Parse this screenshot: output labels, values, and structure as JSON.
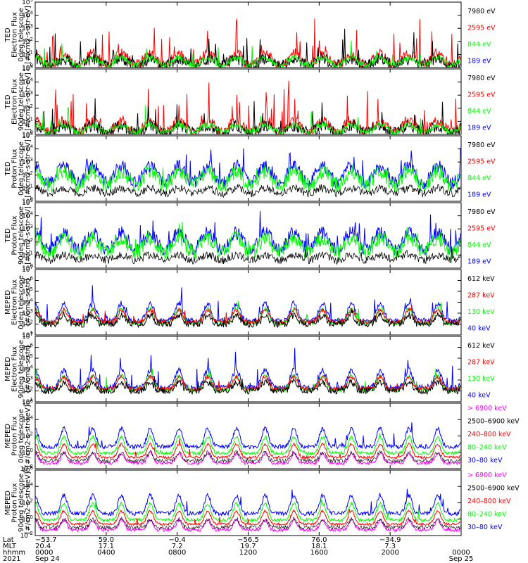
{
  "figure": {
    "footer": {
      "row_labels": [
        "Lat",
        "MLT",
        "hhmm",
        "2021"
      ],
      "columns": [
        {
          "lat": "−53.7",
          "mlt": "20.4",
          "hhmm": "0000",
          "date": "Sep 24"
        },
        {
          "lat": "59.0",
          "mlt": "17.1",
          "hhmm": "0400",
          "date": ""
        },
        {
          "lat": "−0.4",
          "mlt": "7.2",
          "hhmm": "0800",
          "date": ""
        },
        {
          "lat": "−56.5",
          "mlt": "19.7",
          "hhmm": "1200",
          "date": ""
        },
        {
          "lat": "76.0",
          "mlt": "18.1",
          "hhmm": "1600",
          "date": ""
        },
        {
          "lat": "−34.9",
          "mlt": "7.3",
          "hhmm": "2000",
          "date": ""
        },
        {
          "lat": "",
          "mlt": "",
          "hhmm": "0000",
          "date": "Sep 25"
        }
      ]
    }
  },
  "colors": {
    "black": "#000000",
    "red": "#ff0000",
    "green": "#00ff00",
    "blue": "#0000ff",
    "magenta": "#ff00ff"
  },
  "chart_data": [
    {
      "type": "line",
      "ylabel": [
        "TED",
        "Electron Flux",
        "0deg telescope",
        "[#/cm2-s-str-eV]"
      ],
      "ylog": true,
      "ylim_exp": [
        0,
        5
      ],
      "ytick_exps": [
        0,
        1,
        2,
        3,
        4,
        5
      ],
      "x_hours": [
        0,
        24
      ],
      "xtick_hours": [
        0,
        4,
        8,
        12,
        16,
        20,
        24
      ],
      "style": "ted-electron",
      "seed": 11,
      "series": [
        {
          "name": "7980 eV",
          "color": "#000000"
        },
        {
          "name": "2595 eV",
          "color": "#ff0000"
        },
        {
          "name": "844 eV",
          "color": "#00ff00"
        },
        {
          "name": "189 eV",
          "color": "#0000ff"
        }
      ]
    },
    {
      "type": "line",
      "ylabel": [
        "TED",
        "Electron Flux",
        "90deg telescope",
        "[#/cm2-s-str-eV]"
      ],
      "ylog": true,
      "ylim_exp": [
        0,
        5
      ],
      "ytick_exps": [
        0,
        1,
        2,
        3,
        4,
        5
      ],
      "x_hours": [
        0,
        24
      ],
      "xtick_hours": [
        0,
        4,
        8,
        12,
        16,
        20,
        24
      ],
      "style": "ted-electron",
      "seed": 23,
      "series": [
        {
          "name": "7980 eV",
          "color": "#000000"
        },
        {
          "name": "2595 eV",
          "color": "#ff0000"
        },
        {
          "name": "844 eV",
          "color": "#00ff00"
        },
        {
          "name": "189 eV",
          "color": "#0000ff"
        }
      ]
    },
    {
      "type": "line",
      "ylabel": [
        "TED",
        "Proton Flux",
        "0deg telescope",
        "[#/cm2-s-str-eV]"
      ],
      "ylog": true,
      "ylim_exp": [
        0,
        5
      ],
      "ytick_exps": [
        0,
        1,
        2,
        3,
        4,
        5
      ],
      "x_hours": [
        0,
        24
      ],
      "xtick_hours": [
        0,
        4,
        8,
        12,
        16,
        20,
        24
      ],
      "style": "ted-proton",
      "seed": 37,
      "series": [
        {
          "name": "7980 eV",
          "color": "#000000"
        },
        {
          "name": "2595 eV",
          "color": "#ff0000"
        },
        {
          "name": "844 eV",
          "color": "#00ff00"
        },
        {
          "name": "189 eV",
          "color": "#0000ff"
        }
      ]
    },
    {
      "type": "line",
      "ylabel": [
        "TED",
        "Proton Flux",
        "90deg telescope",
        "[#/cm2-s-str-eV]"
      ],
      "ylog": true,
      "ylim_exp": [
        0,
        5
      ],
      "ytick_exps": [
        0,
        1,
        2,
        3,
        4,
        5
      ],
      "x_hours": [
        0,
        24
      ],
      "xtick_hours": [
        0,
        4,
        8,
        12,
        16,
        20,
        24
      ],
      "style": "ted-proton",
      "seed": 41,
      "series": [
        {
          "name": "7980 eV",
          "color": "#000000"
        },
        {
          "name": "2595 eV",
          "color": "#ff0000"
        },
        {
          "name": "844 eV",
          "color": "#00ff00"
        },
        {
          "name": "189 eV",
          "color": "#0000ff"
        }
      ]
    },
    {
      "type": "line",
      "ylabel": [
        "MEPED",
        "Electron Flux",
        "0deg telescope",
        "[#/cm2-s-str]"
      ],
      "ylog": true,
      "ylim_exp": [
        1,
        7
      ],
      "ytick_exps": [
        1,
        2,
        3,
        4,
        5,
        6,
        7
      ],
      "x_hours": [
        0,
        24
      ],
      "xtick_hours": [
        0,
        4,
        8,
        12,
        16,
        20,
        24
      ],
      "style": "meped-electron",
      "seed": 53,
      "series": [
        {
          "name": "612 keV",
          "color": "#000000"
        },
        {
          "name": "287 keV",
          "color": "#ff0000"
        },
        {
          "name": "130 keV",
          "color": "#00ff00"
        },
        {
          "name": "40 keV",
          "color": "#0000ff"
        }
      ]
    },
    {
      "type": "line",
      "ylabel": [
        "MEPED",
        "Electron Flux",
        "90deg telescope",
        "[#/cm2-s-str]"
      ],
      "ylog": true,
      "ylim_exp": [
        1,
        7
      ],
      "ytick_exps": [
        1,
        2,
        3,
        4,
        5,
        6,
        7
      ],
      "x_hours": [
        0,
        24
      ],
      "xtick_hours": [
        0,
        4,
        8,
        12,
        16,
        20,
        24
      ],
      "style": "meped-electron",
      "seed": 67,
      "series": [
        {
          "name": "612 keV",
          "color": "#000000"
        },
        {
          "name": "287 keV",
          "color": "#ff0000"
        },
        {
          "name": "130 keV",
          "color": "#00ff00"
        },
        {
          "name": "40 keV",
          "color": "#0000ff"
        }
      ]
    },
    {
      "type": "line",
      "ylabel": [
        "MEPED",
        "Proton Flux",
        "0deg telescope",
        "[#/cm2-s-str-keV]"
      ],
      "ylog": true,
      "ylim_exp": [
        -2,
        6
      ],
      "ytick_exps": [
        -2,
        0,
        2,
        4,
        6
      ],
      "x_hours": [
        0,
        24
      ],
      "xtick_hours": [
        0,
        4,
        8,
        12,
        16,
        20,
        24
      ],
      "style": "meped-proton",
      "seed": 79,
      "series": [
        {
          "name": "> 6900 keV",
          "color": "#ff00ff"
        },
        {
          "name": "2500–6900 keV",
          "color": "#000000"
        },
        {
          "name": "240–800 keV",
          "color": "#ff0000"
        },
        {
          "name": "80–240 keV",
          "color": "#00ff00"
        },
        {
          "name": "30–80 keV",
          "color": "#0000ff"
        }
      ]
    },
    {
      "type": "line",
      "ylabel": [
        "MEPED",
        "Proton Flux",
        "90deg telescope",
        "[#/cm2-s-str-keV]"
      ],
      "ylog": true,
      "ylim_exp": [
        -2,
        6
      ],
      "ytick_exps": [
        -2,
        0,
        2,
        4,
        6
      ],
      "x_hours": [
        0,
        24
      ],
      "xtick_hours": [
        0,
        4,
        8,
        12,
        16,
        20,
        24
      ],
      "style": "meped-proton",
      "seed": 97,
      "series": [
        {
          "name": "> 6900 keV",
          "color": "#ff00ff"
        },
        {
          "name": "2500–6900 keV",
          "color": "#000000"
        },
        {
          "name": "240–800 keV",
          "color": "#ff0000"
        },
        {
          "name": "80–240 keV",
          "color": "#00ff00"
        },
        {
          "name": "30–80 keV",
          "color": "#0000ff"
        }
      ]
    }
  ]
}
